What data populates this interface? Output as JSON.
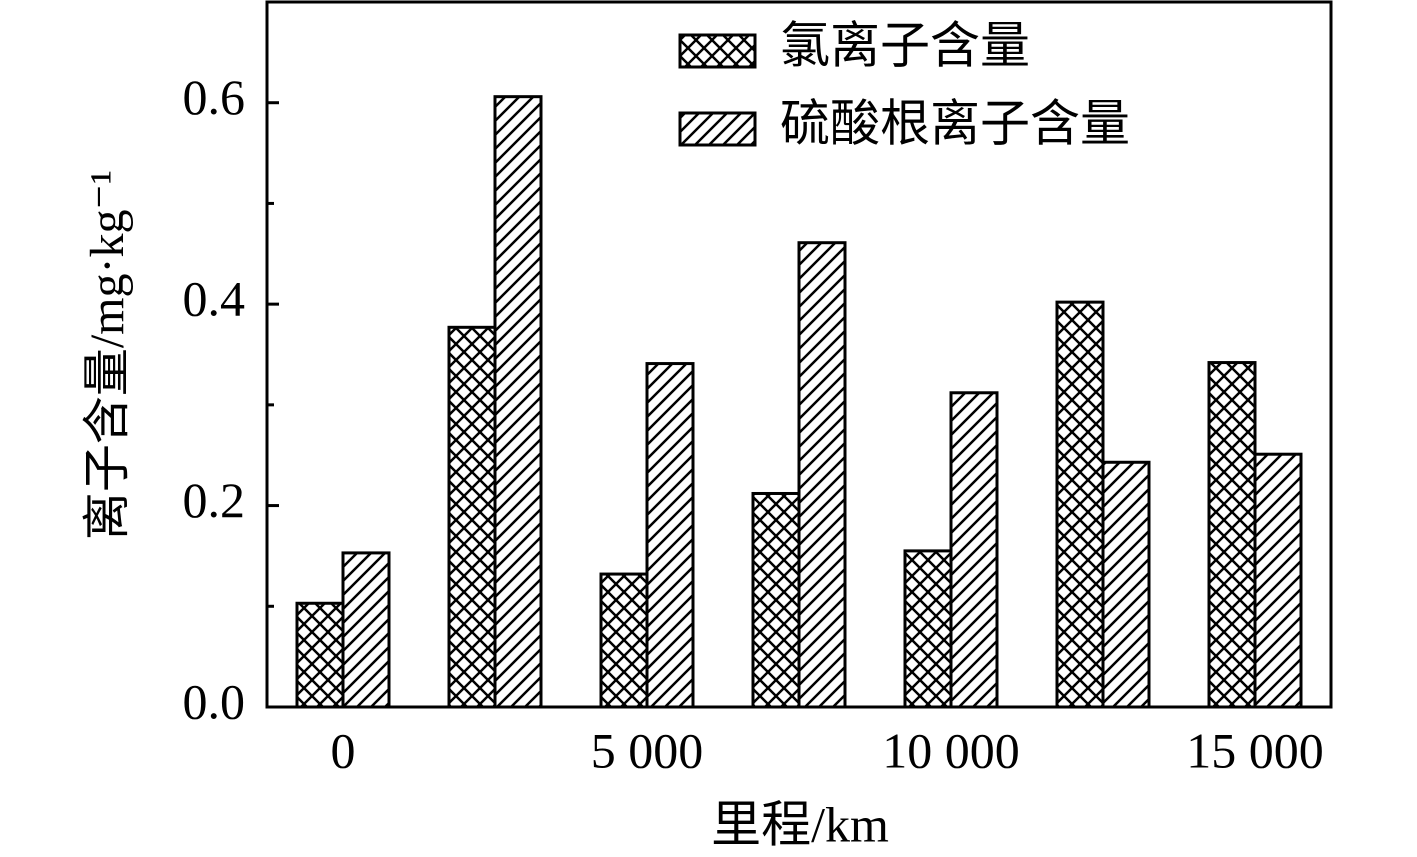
{
  "chart_data": {
    "type": "bar",
    "x_label": "里程/km",
    "y_label": "离子含量/mg·kg⁻¹",
    "categories": [
      "0",
      null,
      "5 000",
      null,
      "10 000",
      null,
      "15 000"
    ],
    "series": [
      {
        "name": "氯离子含量",
        "color": "#000000",
        "hatch": "cross",
        "values": [
          0.103,
          0.377,
          0.132,
          0.212,
          0.155,
          0.402,
          0.342
        ]
      },
      {
        "name": "硫酸根离子含量",
        "color": "#000000",
        "hatch": "diagonal",
        "values": [
          0.153,
          0.606,
          0.341,
          0.461,
          0.312,
          0.243,
          0.251
        ]
      }
    ],
    "ylim": [
      0,
      0.7
    ],
    "yticks": [
      {
        "value": 0,
        "label": "0.0"
      },
      0.2,
      0.4,
      0.6
    ],
    "minor_yticks": [
      0.1,
      0.3,
      0.5
    ],
    "legend": "upper right"
  }
}
